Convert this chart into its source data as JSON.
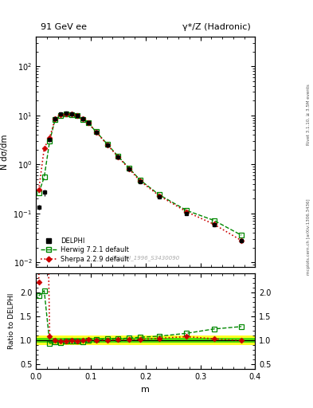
{
  "title_left": "91 GeV ee",
  "title_right": "γ*/Z (Hadronic)",
  "right_label_top": "Rivet 3.1.10, ≥ 3.5M events",
  "right_label_bot": "mcplots.cern.ch [arXiv:1306.3436]",
  "watermark": "DELPHI_1996_S3430090",
  "ylabel_main": "N dσ/dm",
  "ylabel_ratio": "Ratio to DELPHI",
  "xlabel": "m",
  "xlim": [
    0.0,
    0.4
  ],
  "ylim_main_log": [
    0.008,
    400
  ],
  "ylim_ratio": [
    0.4,
    2.4
  ],
  "data_x": [
    0.005,
    0.015,
    0.025,
    0.035,
    0.045,
    0.055,
    0.065,
    0.075,
    0.085,
    0.095,
    0.11,
    0.13,
    0.15,
    0.17,
    0.19,
    0.225,
    0.275,
    0.325,
    0.375
  ],
  "delphi_y": [
    0.135,
    0.27,
    3.2,
    8.5,
    10.5,
    11.0,
    10.5,
    10.0,
    8.5,
    7.0,
    4.5,
    2.5,
    1.4,
    0.8,
    0.45,
    0.22,
    0.1,
    0.058,
    0.028
  ],
  "delphi_yerr": [
    0.015,
    0.04,
    0.3,
    0.4,
    0.4,
    0.4,
    0.4,
    0.35,
    0.3,
    0.25,
    0.15,
    0.09,
    0.06,
    0.035,
    0.02,
    0.01,
    0.005,
    0.003,
    0.002
  ],
  "herwig_y": [
    0.26,
    0.55,
    3.0,
    8.2,
    10.0,
    10.8,
    10.4,
    9.8,
    8.3,
    7.0,
    4.6,
    2.6,
    1.45,
    0.84,
    0.48,
    0.24,
    0.115,
    0.072,
    0.036
  ],
  "sherpa_y": [
    0.3,
    2.15,
    3.5,
    8.6,
    10.3,
    10.8,
    10.5,
    9.9,
    8.5,
    7.1,
    4.55,
    2.52,
    1.42,
    0.81,
    0.46,
    0.23,
    0.108,
    0.06,
    0.028
  ],
  "delphi_color": "#000000",
  "herwig_color": "#008800",
  "sherpa_color": "#cc0000",
  "band_green_inner": "#00cc00",
  "band_green_outer": "#ccff00",
  "band_yellow_outer": "#ffff00",
  "legend_entries": [
    "DELPHI",
    "Herwig 7.2.1 default",
    "Sherpa 2.2.9 default"
  ],
  "ratio_herwig": [
    1.93,
    2.04,
    0.94,
    0.965,
    0.952,
    0.982,
    0.99,
    0.98,
    0.976,
    1.0,
    1.022,
    1.04,
    1.036,
    1.05,
    1.067,
    1.09,
    1.15,
    1.24,
    1.29
  ],
  "ratio_sherpa": [
    2.22,
    7.96,
    1.094,
    1.012,
    0.981,
    0.982,
    1.0,
    0.99,
    1.0,
    1.014,
    1.011,
    1.008,
    1.014,
    1.013,
    1.022,
    1.045,
    1.08,
    1.034,
    1.0
  ],
  "band_x_edges": [
    0.0,
    0.01,
    0.02,
    0.03,
    0.04,
    0.05,
    0.06,
    0.07,
    0.08,
    0.09,
    0.1,
    0.12,
    0.14,
    0.16,
    0.18,
    0.2,
    0.25,
    0.3,
    0.35,
    0.4
  ],
  "band_inner_lo": [
    0.95,
    0.95,
    0.95,
    0.95,
    0.95,
    0.95,
    0.95,
    0.95,
    0.95,
    0.95,
    0.95,
    0.95,
    0.95,
    0.95,
    0.95,
    0.95,
    0.95,
    0.95,
    0.95
  ],
  "band_inner_hi": [
    1.05,
    1.05,
    1.05,
    1.05,
    1.05,
    1.05,
    1.05,
    1.05,
    1.05,
    1.05,
    1.05,
    1.05,
    1.05,
    1.05,
    1.05,
    1.05,
    1.05,
    1.05,
    1.05
  ],
  "band_outer_lo": [
    0.9,
    0.9,
    0.9,
    0.9,
    0.9,
    0.9,
    0.9,
    0.9,
    0.9,
    0.9,
    0.9,
    0.9,
    0.9,
    0.9,
    0.9,
    0.9,
    0.9,
    0.9,
    0.9
  ],
  "band_outer_hi": [
    1.1,
    1.1,
    1.1,
    1.1,
    1.1,
    1.1,
    1.1,
    1.1,
    1.1,
    1.1,
    1.1,
    1.1,
    1.1,
    1.1,
    1.1,
    1.1,
    1.1,
    1.1,
    1.1
  ]
}
